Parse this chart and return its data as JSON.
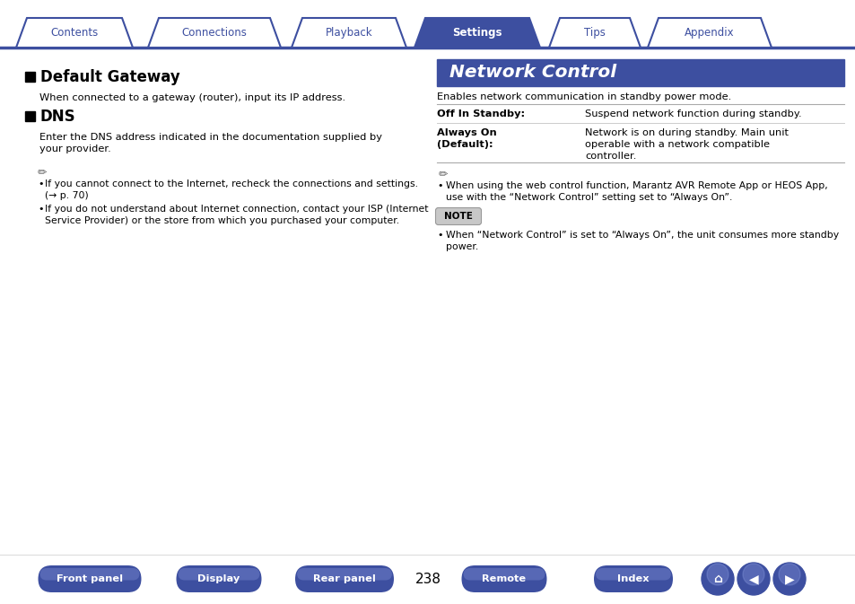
{
  "bg_color": "#ffffff",
  "tab_labels": [
    "Contents",
    "Connections",
    "Playback",
    "Settings",
    "Tips",
    "Appendix"
  ],
  "active_tab": 3,
  "tab_color_active": "#3d4fa0",
  "tab_color_inactive": "#ffffff",
  "tab_text_active": "#ffffff",
  "tab_text_inactive": "#3d4fa0",
  "tab_border_color": "#3d4fa0",
  "left_title1": "Default Gateway",
  "left_text1": "When connected to a gateway (router), input its IP address.",
  "left_title2": "DNS",
  "left_text2a": "Enter the DNS address indicated in the documentation supplied by",
  "left_text2b": "your provider.",
  "left_note_bullet1a": "If you cannot connect to the Internet, recheck the connections and settings.",
  "left_note_bullet1b": "(→ p. 70)",
  "left_note_bullet2a": "If you do not understand about Internet connection, contact your ISP (Internet",
  "left_note_bullet2b": "Service Provider) or the store from which you purchased your computer.",
  "right_section_title": "Network Control",
  "right_section_bg": "#3d4fa0",
  "right_section_text": "#ffffff",
  "right_intro": "Enables network communication in standby power mode.",
  "table_row1_label": "Off In Standby:",
  "table_row1_value": "Suspend network function during standby.",
  "table_row2_label1": "Always On",
  "table_row2_label2": "(Default):",
  "table_row2_value1": "Network is on during standby. Main unit",
  "table_row2_value2": "operable with a network compatible",
  "table_row2_value3": "controller.",
  "right_note_bullet1a": "When using the web control function, Marantz AVR Remote App or HEOS App,",
  "right_note_bullet1b": "use with the “Network Control” setting set to “Always On”.",
  "note_box_label": "NOTE",
  "note_box_bg": "#c8c8c8",
  "right_note2a": "When “Network Control” is set to “Always On”, the unit consumes more standby",
  "right_note2b": "power.",
  "footer_buttons": [
    "Front panel",
    "Display",
    "Rear panel",
    "Remote",
    "Index"
  ],
  "page_number": "238",
  "footer_btn_color": "#3d4fa0",
  "footer_btn_text": "#ffffff"
}
